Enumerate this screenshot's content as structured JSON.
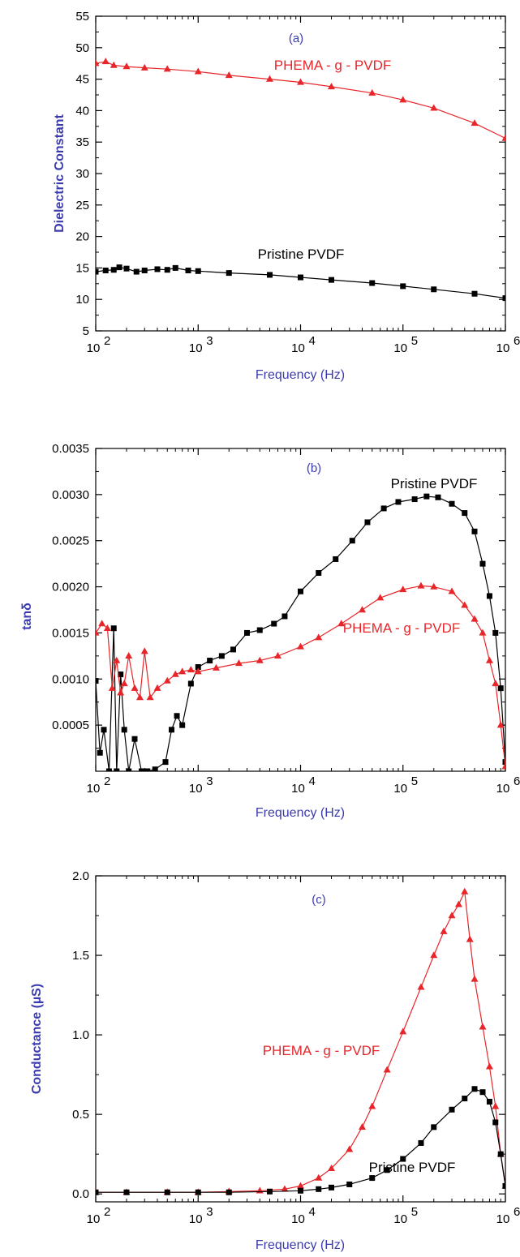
{
  "colors": {
    "pristine": "#000000",
    "phema": "#e8262a",
    "axis_title": "#3b3bb0",
    "frame": "#000000"
  },
  "chart_data": [
    {
      "type": "line",
      "panel_label": "(a)",
      "xlabel": "Frequency (Hz)",
      "ylabel": "Dielectric Constant",
      "x_scale": "log",
      "xlim": [
        100,
        1000000
      ],
      "ylim": [
        5,
        55
      ],
      "yticks": [
        5,
        10,
        15,
        20,
        25,
        30,
        35,
        40,
        45,
        50,
        55
      ],
      "xtick_labels": [
        "10",
        "10",
        "10",
        "10",
        "10"
      ],
      "xtick_exponents": [
        "2",
        "3",
        "4",
        "5",
        "6"
      ],
      "grid": false,
      "series": [
        {
          "name": "PHEMA - g - PVDF",
          "marker": "triangle",
          "color": "#e8262a",
          "x": [
            100,
            125,
            150,
            200,
            300,
            500,
            1000,
            2000,
            5000,
            10000,
            20000,
            50000,
            100000,
            200000,
            500000,
            1000000
          ],
          "y": [
            47.5,
            47.8,
            47.2,
            47.0,
            46.8,
            46.6,
            46.2,
            45.6,
            45.0,
            44.5,
            43.8,
            42.8,
            41.7,
            40.4,
            38.0,
            35.6
          ]
        },
        {
          "name": "Pristine PVDF",
          "marker": "square",
          "color": "#000000",
          "x": [
            100,
            125,
            150,
            170,
            200,
            250,
            300,
            400,
            500,
            600,
            800,
            1000,
            2000,
            5000,
            10000,
            20000,
            50000,
            100000,
            200000,
            500000,
            1000000
          ],
          "y": [
            14.4,
            14.6,
            14.7,
            15.1,
            14.9,
            14.4,
            14.6,
            14.8,
            14.7,
            15.0,
            14.6,
            14.5,
            14.2,
            13.9,
            13.5,
            13.1,
            12.6,
            12.1,
            11.6,
            10.9,
            10.2
          ]
        }
      ],
      "annotations": [
        "(a)",
        "PHEMA - g - PVDF",
        "Pristine PVDF"
      ]
    },
    {
      "type": "line",
      "panel_label": "(b)",
      "xlabel": "Frequency (Hz)",
      "ylabel": "tanδ",
      "x_scale": "log",
      "xlim": [
        100,
        1000000
      ],
      "ylim": [
        0,
        0.0035
      ],
      "ytick_labels": [
        "0.0005",
        "0.0010",
        "0.0015",
        "0.0020",
        "0.0025",
        "0.0030",
        "0.0035"
      ],
      "xtick_labels": [
        "10",
        "10",
        "10",
        "10",
        "10"
      ],
      "xtick_exponents": [
        "2",
        "3",
        "4",
        "5",
        "6"
      ],
      "grid": false,
      "series": [
        {
          "name": "Pristine PVDF",
          "marker": "square",
          "color": "#000000",
          "x": [
            100,
            110,
            120,
            135,
            150,
            160,
            175,
            190,
            210,
            240,
            280,
            320,
            380,
            480,
            550,
            620,
            700,
            850,
            1000,
            1300,
            1700,
            2200,
            3000,
            4000,
            5500,
            7000,
            10000,
            15000,
            22000,
            32000,
            45000,
            65000,
            90000,
            130000,
            170000,
            220000,
            300000,
            400000,
            500000,
            600000,
            700000,
            800000,
            900000,
            1000000
          ],
          "y": [
            0.00098,
            0.0002,
            0.00045,
            0.0,
            0.00155,
            0.0,
            0.00105,
            0.00045,
            0.0,
            0.00035,
            0.0,
            0.0,
            2e-05,
            0.0001,
            0.00045,
            0.0006,
            0.0005,
            0.00095,
            0.00113,
            0.0012,
            0.00125,
            0.00132,
            0.0015,
            0.00153,
            0.0016,
            0.00168,
            0.00195,
            0.00215,
            0.0023,
            0.0025,
            0.0027,
            0.00285,
            0.00292,
            0.00295,
            0.00298,
            0.00297,
            0.0029,
            0.0028,
            0.0026,
            0.00225,
            0.0019,
            0.0015,
            0.0009,
            0.0001
          ]
        },
        {
          "name": "PHEMA - g - PVDF",
          "marker": "triangle",
          "color": "#e8262a",
          "x": [
            100,
            115,
            130,
            145,
            160,
            175,
            190,
            210,
            240,
            270,
            300,
            340,
            400,
            500,
            600,
            700,
            850,
            1000,
            1500,
            2500,
            4000,
            6000,
            10000,
            15000,
            25000,
            40000,
            60000,
            100000,
            150000,
            200000,
            300000,
            400000,
            500000,
            600000,
            700000,
            800000,
            900000,
            1000000
          ],
          "y": [
            0.0015,
            0.0016,
            0.00155,
            0.0009,
            0.0012,
            0.00085,
            0.00095,
            0.00125,
            0.0009,
            0.0008,
            0.0013,
            0.0008,
            0.0009,
            0.00098,
            0.00105,
            0.00108,
            0.0011,
            0.00108,
            0.00112,
            0.00117,
            0.0012,
            0.00125,
            0.00135,
            0.00145,
            0.0016,
            0.00175,
            0.00188,
            0.00197,
            0.00201,
            0.002,
            0.00195,
            0.0018,
            0.00165,
            0.0015,
            0.0012,
            0.00095,
            0.0005,
            5e-05
          ]
        }
      ],
      "annotations": [
        "(b)",
        "Pristine PVDF",
        "PHEMA - g - PVDF"
      ]
    },
    {
      "type": "line",
      "panel_label": "(c)",
      "xlabel": "Frequency (Hz)",
      "ylabel": "Conductance (µS)",
      "x_scale": "log",
      "xlim": [
        100,
        1000000
      ],
      "ylim": [
        -0.05,
        2.0
      ],
      "ytick_labels": [
        "0.0",
        "0.5",
        "1.0",
        "1.5",
        "2.0"
      ],
      "xtick_labels": [
        "10",
        "10",
        "10",
        "10",
        "10"
      ],
      "xtick_exponents": [
        "2",
        "3",
        "4",
        "5",
        "6"
      ],
      "grid": false,
      "series": [
        {
          "name": "PHEMA - g - PVDF",
          "marker": "triangle",
          "color": "#e8262a",
          "x": [
            100,
            200,
            500,
            1000,
            2000,
            4000,
            7000,
            10000,
            15000,
            20000,
            30000,
            40000,
            50000,
            70000,
            100000,
            150000,
            200000,
            250000,
            300000,
            350000,
            400000,
            450000,
            500000,
            600000,
            700000,
            800000,
            900000,
            1000000
          ],
          "y": [
            0.01,
            0.01,
            0.01,
            0.01,
            0.015,
            0.02,
            0.03,
            0.05,
            0.1,
            0.16,
            0.28,
            0.42,
            0.55,
            0.78,
            1.02,
            1.3,
            1.5,
            1.65,
            1.75,
            1.82,
            1.9,
            1.6,
            1.35,
            1.05,
            0.8,
            0.55,
            0.25,
            0.05
          ]
        },
        {
          "name": "Pristine PVDF",
          "marker": "square",
          "color": "#000000",
          "x": [
            100,
            200,
            500,
            1000,
            2000,
            5000,
            10000,
            15000,
            20000,
            30000,
            50000,
            70000,
            100000,
            150000,
            200000,
            300000,
            400000,
            500000,
            600000,
            700000,
            800000,
            900000,
            1000000
          ],
          "y": [
            0.01,
            0.01,
            0.01,
            0.01,
            0.01,
            0.015,
            0.02,
            0.03,
            0.04,
            0.06,
            0.1,
            0.15,
            0.22,
            0.32,
            0.42,
            0.53,
            0.6,
            0.66,
            0.64,
            0.58,
            0.45,
            0.25,
            0.05
          ]
        }
      ],
      "annotations": [
        "(c)",
        "PHEMA - g - PVDF",
        "Pristine PVDF"
      ]
    }
  ]
}
